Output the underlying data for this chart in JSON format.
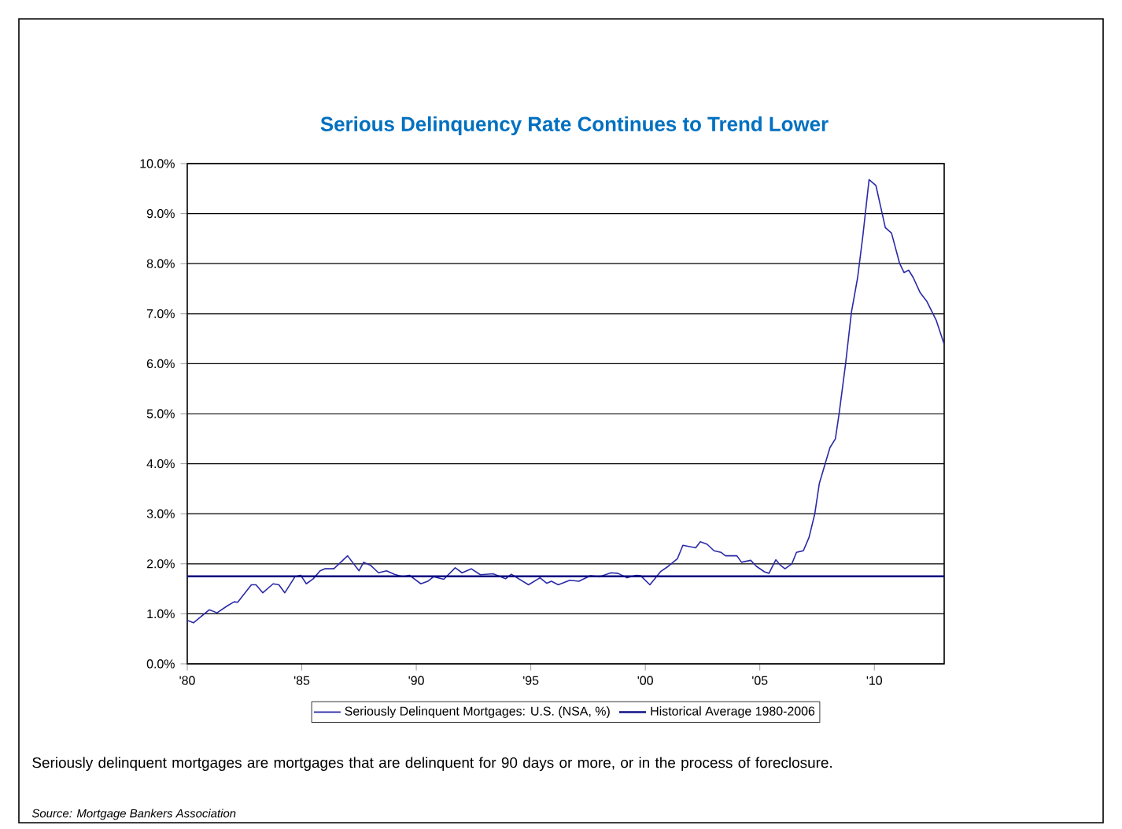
{
  "chart_data": {
    "type": "line",
    "title": "Serious Delinquency Rate Continues to Trend Lower",
    "annotations": [
      "Seriously delinquent mortgages are mortgages that are delinquent for 90 days or more, or in the process of foreclosure.",
      "*Source: Mortgage Bankers Association*"
    ],
    "xlim": [
      1980,
      2013.05
    ],
    "xticks": [
      {
        "value": 1980,
        "label": "'80"
      },
      {
        "value": 1985,
        "label": "'85"
      },
      {
        "value": 1990,
        "label": "'90"
      },
      {
        "value": 1995,
        "label": "'95"
      },
      {
        "value": 2000,
        "label": "'00"
      },
      {
        "value": 2005,
        "label": "'05"
      },
      {
        "value": 2010,
        "label": "'10"
      }
    ],
    "ylim": [
      0,
      10
    ],
    "yticks": [
      {
        "value": 0,
        "label": "0.0%"
      },
      {
        "value": 1,
        "label": "1.0%"
      },
      {
        "value": 2,
        "label": "2.0%"
      },
      {
        "value": 3,
        "label": "3.0%"
      },
      {
        "value": 4,
        "label": "4.0%"
      },
      {
        "value": 5,
        "label": "5.0%"
      },
      {
        "value": 6,
        "label": "6.0%"
      },
      {
        "value": 7,
        "label": "7.0%"
      },
      {
        "value": 8,
        "label": "8.0%"
      },
      {
        "value": 9,
        "label": "9.0%"
      },
      {
        "value": 10,
        "label": "10.0%"
      }
    ],
    "grid": "y",
    "legend": "bottom",
    "series": [
      {
        "name": "Seriously Delinquent Mortgages: U.S. (NSA, %)",
        "color": "#2a2aa8",
        "x": [
          1980.0,
          1980.27,
          1980.96,
          1981.3,
          1981.75,
          1982.05,
          1982.2,
          1982.8,
          1983.0,
          1983.3,
          1983.75,
          1984.0,
          1984.26,
          1984.7,
          1984.95,
          1985.2,
          1985.5,
          1985.8,
          1986.0,
          1986.4,
          1987.0,
          1987.5,
          1987.7,
          1988.0,
          1988.35,
          1988.7,
          1989.05,
          1989.4,
          1989.7,
          1990.2,
          1990.5,
          1990.75,
          1991.2,
          1991.7,
          1992.0,
          1992.4,
          1992.8,
          1993.35,
          1993.9,
          1994.15,
          1994.9,
          1995.4,
          1995.7,
          1995.9,
          1996.2,
          1996.7,
          1997.1,
          1997.6,
          1998.0,
          1998.5,
          1998.8,
          1999.2,
          1999.6,
          1999.8,
          2000.2,
          2000.66,
          2001.0,
          2001.4,
          2001.64,
          2002.2,
          2002.4,
          2002.7,
          2003.0,
          2003.3,
          2003.5,
          2004.0,
          2004.2,
          2004.6,
          2004.85,
          2005.2,
          2005.4,
          2005.7,
          2005.9,
          2006.1,
          2006.4,
          2006.6,
          2006.9,
          2007.15,
          2007.4,
          2007.6,
          2008.06,
          2008.3,
          2008.47,
          2008.74,
          2009.0,
          2009.27,
          2009.5,
          2009.77,
          2010.07,
          2010.48,
          2010.75,
          2011.1,
          2011.3,
          2011.5,
          2011.7,
          2012.0,
          2012.3,
          2012.7,
          2013.04
        ],
        "values": [
          0.87,
          0.82,
          1.08,
          1.02,
          1.16,
          1.24,
          1.23,
          1.58,
          1.58,
          1.42,
          1.6,
          1.58,
          1.42,
          1.74,
          1.77,
          1.6,
          1.7,
          1.86,
          1.9,
          1.9,
          2.16,
          1.86,
          2.03,
          1.97,
          1.82,
          1.86,
          1.79,
          1.74,
          1.77,
          1.6,
          1.65,
          1.74,
          1.69,
          1.92,
          1.82,
          1.9,
          1.78,
          1.8,
          1.7,
          1.79,
          1.58,
          1.72,
          1.61,
          1.65,
          1.58,
          1.67,
          1.65,
          1.76,
          1.74,
          1.82,
          1.81,
          1.72,
          1.77,
          1.76,
          1.58,
          1.84,
          1.95,
          2.1,
          2.37,
          2.32,
          2.44,
          2.39,
          2.26,
          2.23,
          2.16,
          2.16,
          2.03,
          2.07,
          1.95,
          1.84,
          1.81,
          2.08,
          1.97,
          1.9,
          2.0,
          2.23,
          2.26,
          2.53,
          3.0,
          3.61,
          4.32,
          4.5,
          5.03,
          5.98,
          7.03,
          7.72,
          8.56,
          9.68,
          9.56,
          8.72,
          8.61,
          8.01,
          7.82,
          7.87,
          7.72,
          7.42,
          7.24,
          6.87,
          6.4
        ]
      },
      {
        "name": "Historical Average 1980-2006",
        "color": "#000080",
        "x": [
          1980,
          2013.05
        ],
        "values": [
          1.75,
          1.75
        ]
      }
    ]
  }
}
